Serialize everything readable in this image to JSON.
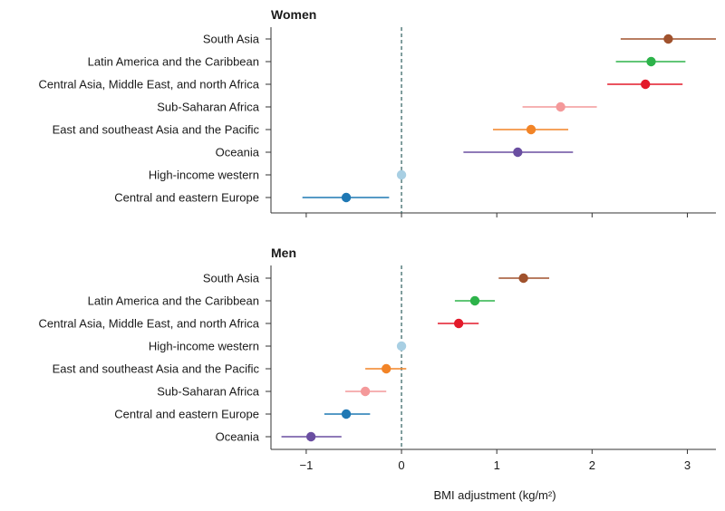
{
  "chart_data": {
    "type": "forest",
    "xlabel": "BMI adjustment (kg/m²)",
    "xlim": [
      -1.37,
      3.3
    ],
    "xticks": [
      -1,
      0,
      1,
      2,
      3
    ],
    "xtick_labels": [
      "−1",
      "0",
      "1",
      "2",
      "3"
    ],
    "reference_line": 0,
    "colors": {
      "South Asia": "#a0522d",
      "Latin America and the Caribbean": "#2db34a",
      "Central Asia, Middle East, and north Africa": "#e31a2a",
      "Sub-Saharan Africa": "#f4999a",
      "East and southeast Asia and the Pacific": "#f28427",
      "Oceania": "#6a4ea1",
      "High-income western": "#a8cfe3",
      "Central and eastern Europe": "#1f78b4"
    },
    "panels": [
      {
        "title": "Women",
        "rows": [
          {
            "label": "South Asia",
            "estimate": 2.8,
            "lower": 2.3,
            "upper": 3.3
          },
          {
            "label": "Latin America and the Caribbean",
            "estimate": 2.62,
            "lower": 2.25,
            "upper": 2.98
          },
          {
            "label": "Central Asia, Middle East, and north Africa",
            "estimate": 2.56,
            "lower": 2.16,
            "upper": 2.95
          },
          {
            "label": "Sub-Saharan Africa",
            "estimate": 1.67,
            "lower": 1.27,
            "upper": 2.05
          },
          {
            "label": "East and southeast Asia and the Pacific",
            "estimate": 1.36,
            "lower": 0.96,
            "upper": 1.75
          },
          {
            "label": "Oceania",
            "estimate": 1.22,
            "lower": 0.65,
            "upper": 1.8
          },
          {
            "label": "High-income western",
            "estimate": 0.0,
            "lower": 0.0,
            "upper": 0.0
          },
          {
            "label": "Central and eastern Europe",
            "estimate": -0.58,
            "lower": -1.04,
            "upper": -0.13
          }
        ]
      },
      {
        "title": "Men",
        "rows": [
          {
            "label": "South Asia",
            "estimate": 1.28,
            "lower": 1.02,
            "upper": 1.55
          },
          {
            "label": "Latin America and the Caribbean",
            "estimate": 0.77,
            "lower": 0.56,
            "upper": 0.98
          },
          {
            "label": "Central Asia, Middle East, and north Africa",
            "estimate": 0.6,
            "lower": 0.38,
            "upper": 0.81
          },
          {
            "label": "High-income western",
            "estimate": 0.0,
            "lower": 0.0,
            "upper": 0.0
          },
          {
            "label": "East and southeast Asia and the Pacific",
            "estimate": -0.16,
            "lower": -0.38,
            "upper": 0.05
          },
          {
            "label": "Sub-Saharan Africa",
            "estimate": -0.38,
            "lower": -0.59,
            "upper": -0.16
          },
          {
            "label": "Central and eastern Europe",
            "estimate": -0.58,
            "lower": -0.81,
            "upper": -0.33
          },
          {
            "label": "Oceania",
            "estimate": -0.95,
            "lower": -1.26,
            "upper": -0.63
          }
        ]
      }
    ]
  }
}
